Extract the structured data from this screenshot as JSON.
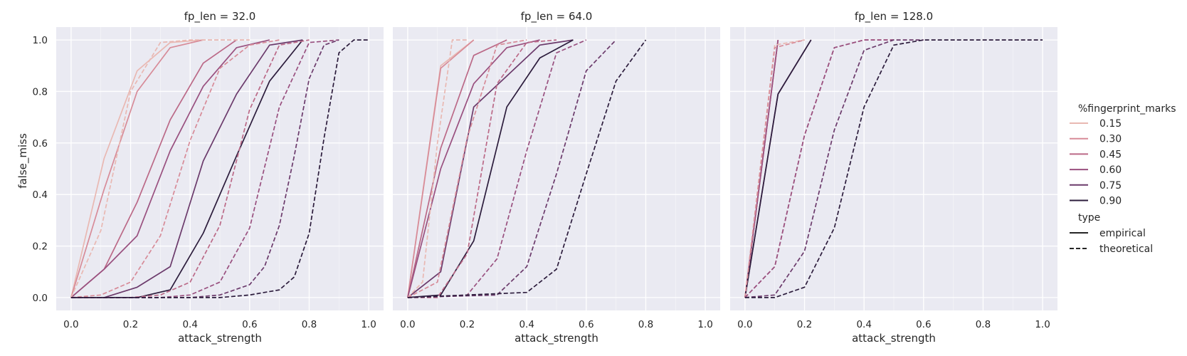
{
  "chart_data": {
    "type": "line",
    "xlabel": "attack_strength",
    "ylabel": "false_miss",
    "xlim": [
      -0.05,
      1.05
    ],
    "ylim": [
      -0.05,
      1.05
    ],
    "x_ticks": [
      "0.0",
      "0.2",
      "0.4",
      "0.6",
      "0.8",
      "1.0"
    ],
    "y_ticks": [
      "0.0",
      "0.2",
      "0.4",
      "0.6",
      "0.8",
      "1.0"
    ],
    "grid": true,
    "legend_placement": "right",
    "hue_title": "%fingerprint_marks",
    "hue_levels": [
      {
        "label": "0.15",
        "color": "#e9b8b2"
      },
      {
        "label": "0.30",
        "color": "#d78b98"
      },
      {
        "label": "0.45",
        "color": "#bb6987"
      },
      {
        "label": "0.60",
        "color": "#99507f"
      },
      {
        "label": "0.75",
        "color": "#6b3a6b"
      },
      {
        "label": "0.90",
        "color": "#2c1c3c"
      }
    ],
    "style_title": "type",
    "style_levels": [
      {
        "label": "empirical",
        "dash": "solid"
      },
      {
        "label": "theoretical",
        "dash": "dashed"
      }
    ],
    "panels": [
      {
        "title": "fp_len = 32.0",
        "series": [
          {
            "hue": 0,
            "type": "empirical",
            "x": [
              0,
              0.111,
              0.222,
              0.333,
              0.444
            ],
            "y": [
              0,
              0.54,
              0.88,
              0.99,
              1.0
            ]
          },
          {
            "hue": 1,
            "type": "empirical",
            "x": [
              0,
              0.111,
              0.222,
              0.333,
              0.444
            ],
            "y": [
              0,
              0.42,
              0.8,
              0.97,
              1.0
            ]
          },
          {
            "hue": 2,
            "type": "empirical",
            "x": [
              0,
              0.111,
              0.222,
              0.333,
              0.444,
              0.556
            ],
            "y": [
              0,
              0.11,
              0.37,
              0.69,
              0.91,
              1.0
            ]
          },
          {
            "hue": 3,
            "type": "empirical",
            "x": [
              0,
              0.111,
              0.222,
              0.333,
              0.444,
              0.556,
              0.667
            ],
            "y": [
              0,
              0.11,
              0.24,
              0.57,
              0.82,
              0.97,
              1.0
            ]
          },
          {
            "hue": 4,
            "type": "empirical",
            "x": [
              0,
              0.111,
              0.222,
              0.333,
              0.444,
              0.556,
              0.667,
              0.778
            ],
            "y": [
              0,
              0,
              0.04,
              0.12,
              0.53,
              0.79,
              0.98,
              1.0
            ]
          },
          {
            "hue": 5,
            "type": "empirical",
            "x": [
              0,
              0.111,
              0.222,
              0.333,
              0.444,
              0.556,
              0.667,
              0.778
            ],
            "y": [
              0,
              0,
              0,
              0.03,
              0.25,
              0.55,
              0.84,
              1.0
            ]
          },
          {
            "hue": 0,
            "type": "theoretical",
            "x": [
              0,
              0.1,
              0.2,
              0.3,
              0.4,
              0.5,
              0.6
            ],
            "y": [
              0,
              0.26,
              0.8,
              0.99,
              1.0,
              1.0,
              1.0
            ]
          },
          {
            "hue": 1,
            "type": "theoretical",
            "x": [
              0,
              0.1,
              0.2,
              0.3,
              0.4,
              0.5,
              0.6,
              0.7
            ],
            "y": [
              0,
              0.01,
              0.06,
              0.24,
              0.61,
              0.89,
              0.98,
              1.0
            ]
          },
          {
            "hue": 2,
            "type": "theoretical",
            "x": [
              0,
              0.1,
              0.2,
              0.3,
              0.4,
              0.5,
              0.6,
              0.7,
              0.8
            ],
            "y": [
              0,
              0,
              0,
              0.01,
              0.06,
              0.28,
              0.73,
              0.98,
              1.0
            ]
          },
          {
            "hue": 3,
            "type": "theoretical",
            "x": [
              0,
              0.3,
              0.4,
              0.5,
              0.6,
              0.7,
              0.8,
              0.9
            ],
            "y": [
              0,
              0,
              0.01,
              0.06,
              0.27,
              0.74,
              0.99,
              1.0
            ]
          },
          {
            "hue": 4,
            "type": "theoretical",
            "x": [
              0,
              0.4,
              0.5,
              0.6,
              0.65,
              0.7,
              0.75,
              0.8,
              0.85,
              0.9
            ],
            "y": [
              0,
              0,
              0.01,
              0.05,
              0.12,
              0.28,
              0.55,
              0.85,
              0.98,
              1.0
            ]
          },
          {
            "hue": 5,
            "type": "theoretical",
            "x": [
              0,
              0.5,
              0.6,
              0.7,
              0.75,
              0.8,
              0.85,
              0.9,
              0.95,
              1.0
            ],
            "y": [
              0,
              0,
              0.01,
              0.03,
              0.08,
              0.25,
              0.62,
              0.95,
              1.0,
              1.0
            ]
          }
        ]
      },
      {
        "title": "fp_len = 64.0",
        "series": [
          {
            "hue": 0,
            "type": "empirical",
            "x": [
              0,
              0.111,
              0.222
            ],
            "y": [
              0,
              0.9,
              1.0
            ]
          },
          {
            "hue": 1,
            "type": "empirical",
            "x": [
              0,
              0.111,
              0.222
            ],
            "y": [
              0,
              0.89,
              1.0
            ]
          },
          {
            "hue": 2,
            "type": "empirical",
            "x": [
              0,
              0.111,
              0.222,
              0.333
            ],
            "y": [
              0,
              0.58,
              0.94,
              1.0
            ]
          },
          {
            "hue": 3,
            "type": "empirical",
            "x": [
              0,
              0.111,
              0.222,
              0.333,
              0.444
            ],
            "y": [
              0,
              0.5,
              0.83,
              0.97,
              1.0
            ]
          },
          {
            "hue": 4,
            "type": "empirical",
            "x": [
              0,
              0.111,
              0.222,
              0.333,
              0.444,
              0.556
            ],
            "y": [
              0,
              0.1,
              0.74,
              0.86,
              0.98,
              1.0
            ]
          },
          {
            "hue": 5,
            "type": "empirical",
            "x": [
              0,
              0.111,
              0.222,
              0.333,
              0.444,
              0.556
            ],
            "y": [
              0,
              0.01,
              0.22,
              0.74,
              0.93,
              1.0
            ]
          },
          {
            "hue": 0,
            "type": "theoretical",
            "x": [
              0,
              0.05,
              0.1,
              0.15,
              0.2
            ],
            "y": [
              0,
              0.06,
              0.6,
              1.0,
              1.0
            ]
          },
          {
            "hue": 1,
            "type": "theoretical",
            "x": [
              0,
              0.1,
              0.2,
              0.3,
              0.4
            ],
            "y": [
              0,
              0.06,
              0.62,
              0.98,
              1.0
            ]
          },
          {
            "hue": 2,
            "type": "theoretical",
            "x": [
              0,
              0.1,
              0.2,
              0.3,
              0.4,
              0.5
            ],
            "y": [
              0,
              0,
              0.17,
              0.83,
              0.99,
              1.0
            ]
          },
          {
            "hue": 3,
            "type": "theoretical",
            "x": [
              0,
              0.2,
              0.3,
              0.4,
              0.5,
              0.6
            ],
            "y": [
              0,
              0.01,
              0.15,
              0.57,
              0.95,
              1.0
            ]
          },
          {
            "hue": 4,
            "type": "theoretical",
            "x": [
              0,
              0.3,
              0.4,
              0.5,
              0.6,
              0.7
            ],
            "y": [
              0,
              0.01,
              0.12,
              0.48,
              0.88,
              1.0
            ]
          },
          {
            "hue": 5,
            "type": "theoretical",
            "x": [
              0,
              0.4,
              0.5,
              0.6,
              0.7,
              0.8
            ],
            "y": [
              0,
              0.02,
              0.11,
              0.48,
              0.84,
              1.0
            ]
          }
        ]
      },
      {
        "title": "fp_len = 128.0",
        "series": [
          {
            "hue": 0,
            "type": "empirical",
            "x": [
              0,
              0.111
            ],
            "y": [
              0,
              1.0
            ]
          },
          {
            "hue": 1,
            "type": "empirical",
            "x": [
              0,
              0.111
            ],
            "y": [
              0,
              1.0
            ]
          },
          {
            "hue": 2,
            "type": "empirical",
            "x": [
              0,
              0.111
            ],
            "y": [
              0,
              1.0
            ]
          },
          {
            "hue": 3,
            "type": "empirical",
            "x": [
              0,
              0.111
            ],
            "y": [
              0,
              1.0
            ]
          },
          {
            "hue": 4,
            "type": "empirical",
            "x": [
              0,
              0.111,
              0.222
            ],
            "y": [
              0,
              0.79,
              1.0
            ]
          },
          {
            "hue": 5,
            "type": "empirical",
            "x": [
              0,
              0.111,
              0.222
            ],
            "y": [
              0,
              0.79,
              1.0
            ]
          },
          {
            "hue": 0,
            "type": "theoretical",
            "x": [
              0,
              0.1,
              0.2
            ],
            "y": [
              0,
              0.98,
              1.0
            ]
          },
          {
            "hue": 1,
            "type": "theoretical",
            "x": [
              0,
              0.1,
              0.2
            ],
            "y": [
              0,
              0.97,
              1.0
            ]
          },
          {
            "hue": 2,
            "type": "theoretical",
            "x": [
              0,
              0.1,
              0.2,
              0.3,
              0.4,
              0.5
            ],
            "y": [
              0,
              0.12,
              0.63,
              0.97,
              1.0,
              1.0
            ]
          },
          {
            "hue": 3,
            "type": "theoretical",
            "x": [
              0,
              0.1,
              0.2,
              0.3,
              0.4,
              0.5
            ],
            "y": [
              0,
              0.12,
              0.63,
              0.97,
              1.0,
              1.0
            ]
          },
          {
            "hue": 4,
            "type": "theoretical",
            "x": [
              0,
              0.1,
              0.2,
              0.3,
              0.4,
              0.5,
              0.6
            ],
            "y": [
              0,
              0.01,
              0.18,
              0.65,
              0.96,
              1.0,
              1.0
            ]
          },
          {
            "hue": 5,
            "type": "theoretical",
            "x": [
              0,
              0.1,
              0.2,
              0.3,
              0.4,
              0.5,
              0.6,
              1.0
            ],
            "y": [
              0,
              0,
              0.04,
              0.27,
              0.74,
              0.98,
              1.0,
              1.0
            ]
          }
        ]
      }
    ]
  }
}
